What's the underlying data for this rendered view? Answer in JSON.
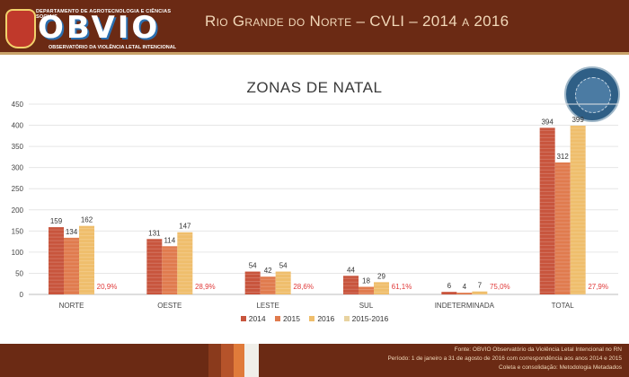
{
  "header": {
    "brand": "OBVIO",
    "department": "DEPARTAMENTO DE AGROTECNOLOGIA E CIÊNCIAS SOCIAIS",
    "subtitle": "OBSERVATÓRIO DA VIOLÊNCIA LETAL INTENCIONAL",
    "title": "Rio Grande do Norte – CVLI – 2014 a 2016"
  },
  "chart_data": {
    "type": "bar",
    "title": "ZONAS DE NATAL",
    "categories": [
      "NORTE",
      "OESTE",
      "LESTE",
      "SUL",
      "INDETERMINADA",
      "TOTAL"
    ],
    "series": [
      {
        "name": "2014",
        "values": [
          159,
          131,
          54,
          44,
          6,
          394
        ],
        "color": "#c8553d"
      },
      {
        "name": "2015",
        "values": [
          134,
          114,
          42,
          18,
          4,
          312
        ],
        "color": "#e07b4e"
      },
      {
        "name": "2016",
        "values": [
          162,
          147,
          54,
          29,
          7,
          399
        ],
        "color": "#efbe6c"
      },
      {
        "name": "2015-2016",
        "values": [
          "20,9%",
          "28,9%",
          "28,6%",
          "61,1%",
          "75,0%",
          "27,9%"
        ],
        "color": "#e8d3a0"
      }
    ],
    "ylim": [
      0,
      450
    ],
    "yticks": [
      0,
      50,
      100,
      150,
      200,
      250,
      300,
      350,
      400,
      450
    ],
    "legend": "bottom-center"
  },
  "footer": {
    "line1": "Fonte: OBVIO Observatório da Violência Letal Intencional no RN",
    "line2": "Período: 1 de janeiro a 31 de agosto de 2016 com correspondência aos anos 2014 e 2015",
    "line3": "Coleta e consolidação: Metodologia Metadados"
  },
  "colors": {
    "header": "#6b2a14",
    "accent": "#c9a36a",
    "pct": "#e03a3a"
  }
}
